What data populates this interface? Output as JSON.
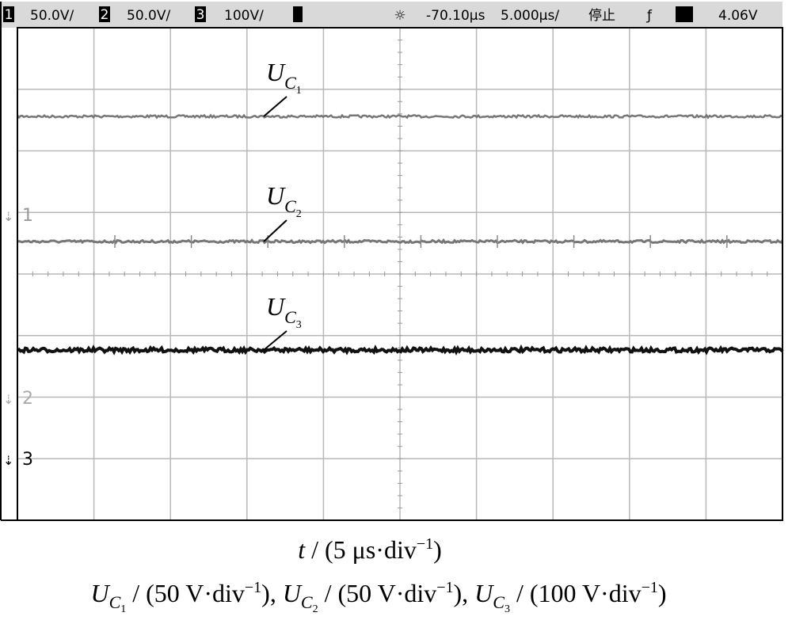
{
  "header": {
    "channels": [
      {
        "number": "1",
        "scale": "50.0V/"
      },
      {
        "number": "2",
        "scale": "50.0V/"
      },
      {
        "number": "3",
        "scale": "100V/"
      }
    ],
    "delay": "-70.10µs",
    "timebase": "5.000µs/",
    "status": "停止",
    "trigger_level": "4.06V"
  },
  "traces": [
    {
      "symbol": "U",
      "sub": "C",
      "subsub": "1",
      "marker": "1"
    },
    {
      "symbol": "U",
      "sub": "C",
      "subsub": "2",
      "marker": "2"
    },
    {
      "symbol": "U",
      "sub": "C",
      "subsub": "3",
      "marker": "3"
    }
  ],
  "x_caption": {
    "symbol": "t",
    "text": " / (5 μs·div",
    "exp": "−1",
    "end": ")"
  },
  "y_caption": [
    {
      "symbol": "U",
      "sub": "C",
      "subsub": "1",
      "text": " / (50 V·div",
      "exp": "−1",
      "end": "), "
    },
    {
      "symbol": "U",
      "sub": "C",
      "subsub": "2",
      "text": " / (50 V·div",
      "exp": "−1",
      "end": "), "
    },
    {
      "symbol": "U",
      "sub": "C",
      "subsub": "3",
      "text": " / (100 V·div",
      "exp": "−1",
      "end": ")"
    }
  ]
}
